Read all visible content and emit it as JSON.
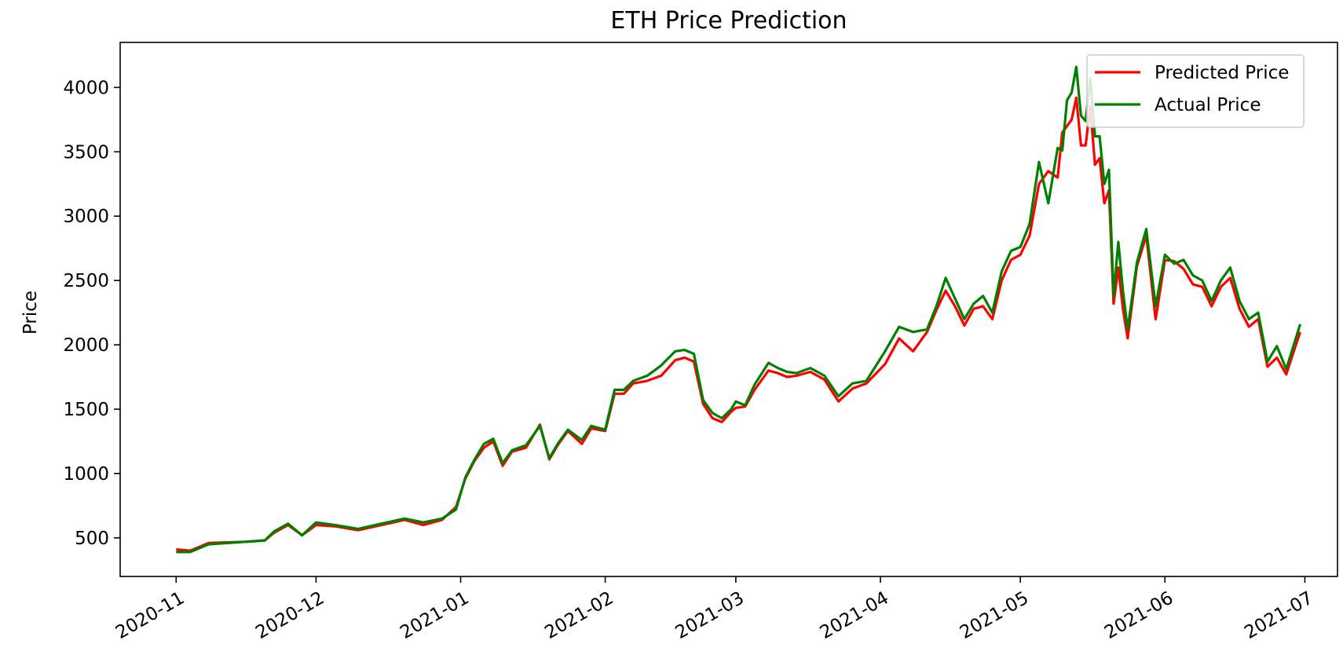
{
  "chart_data": {
    "type": "line",
    "title": "ETH Price Prediction",
    "xlabel": "",
    "ylabel": "Price",
    "x_axis": "date",
    "xlim": [
      "2020-10-20",
      "2021-07-08"
    ],
    "ylim": [
      200,
      4350
    ],
    "x_ticks": [
      "2020-11",
      "2020-12",
      "2021-01",
      "2021-02",
      "2021-03",
      "2021-04",
      "2021-05",
      "2021-06",
      "2021-07"
    ],
    "y_ticks": [
      500,
      1000,
      1500,
      2000,
      2500,
      3000,
      3500,
      4000
    ],
    "grid": false,
    "legend_position": "top-right",
    "dates": [
      "2020-11-01",
      "2020-11-04",
      "2020-11-08",
      "2020-11-12",
      "2020-11-16",
      "2020-11-20",
      "2020-11-22",
      "2020-11-25",
      "2020-11-28",
      "2020-12-01",
      "2020-12-05",
      "2020-12-10",
      "2020-12-15",
      "2020-12-20",
      "2020-12-24",
      "2020-12-28",
      "2020-12-31",
      "2021-01-02",
      "2021-01-04",
      "2021-01-06",
      "2021-01-08",
      "2021-01-10",
      "2021-01-12",
      "2021-01-15",
      "2021-01-18",
      "2021-01-20",
      "2021-01-22",
      "2021-01-24",
      "2021-01-27",
      "2021-01-29",
      "2021-02-01",
      "2021-02-03",
      "2021-02-05",
      "2021-02-07",
      "2021-02-10",
      "2021-02-13",
      "2021-02-16",
      "2021-02-18",
      "2021-02-20",
      "2021-02-22",
      "2021-02-24",
      "2021-02-26",
      "2021-02-28",
      "2021-03-01",
      "2021-03-03",
      "2021-03-05",
      "2021-03-08",
      "2021-03-10",
      "2021-03-12",
      "2021-03-14",
      "2021-03-17",
      "2021-03-20",
      "2021-03-23",
      "2021-03-26",
      "2021-03-29",
      "2021-04-02",
      "2021-04-05",
      "2021-04-08",
      "2021-04-11",
      "2021-04-13",
      "2021-04-15",
      "2021-04-17",
      "2021-04-19",
      "2021-04-21",
      "2021-04-23",
      "2021-04-25",
      "2021-04-27",
      "2021-04-29",
      "2021-05-01",
      "2021-05-03",
      "2021-05-05",
      "2021-05-07",
      "2021-05-09",
      "2021-05-10",
      "2021-05-11",
      "2021-05-12",
      "2021-05-13",
      "2021-05-14",
      "2021-05-15",
      "2021-05-16",
      "2021-05-17",
      "2021-05-18",
      "2021-05-19",
      "2021-05-20",
      "2021-05-21",
      "2021-05-22",
      "2021-05-23",
      "2021-05-24",
      "2021-05-26",
      "2021-05-28",
      "2021-05-30",
      "2021-06-01",
      "2021-06-03",
      "2021-06-05",
      "2021-06-07",
      "2021-06-09",
      "2021-06-11",
      "2021-06-13",
      "2021-06-15",
      "2021-06-17",
      "2021-06-19",
      "2021-06-21",
      "2021-06-23",
      "2021-06-25",
      "2021-06-27",
      "2021-06-30"
    ],
    "series": [
      {
        "name": "Predicted Price",
        "color": "#ff0000",
        "values": [
          410,
          400,
          460,
          465,
          470,
          480,
          540,
          600,
          520,
          600,
          590,
          560,
          600,
          640,
          600,
          640,
          740,
          960,
          1100,
          1200,
          1250,
          1060,
          1170,
          1200,
          1380,
          1110,
          1230,
          1330,
          1230,
          1350,
          1330,
          1620,
          1620,
          1700,
          1720,
          1760,
          1880,
          1900,
          1870,
          1540,
          1430,
          1400,
          1480,
          1510,
          1520,
          1650,
          1800,
          1780,
          1750,
          1760,
          1790,
          1730,
          1560,
          1660,
          1700,
          1850,
          2050,
          1950,
          2100,
          2270,
          2420,
          2300,
          2150,
          2280,
          2300,
          2200,
          2500,
          2660,
          2700,
          2850,
          3250,
          3350,
          3300,
          3650,
          3700,
          3750,
          3920,
          3550,
          3550,
          3850,
          3400,
          3450,
          3100,
          3200,
          2320,
          2600,
          2280,
          2050,
          2610,
          2850,
          2200,
          2660,
          2650,
          2590,
          2470,
          2450,
          2300,
          2450,
          2520,
          2280,
          2140,
          2200,
          1830,
          1900,
          1770,
          2100
        ]
      },
      {
        "name": "Actual Price",
        "color": "#008000",
        "values": [
          390,
          390,
          450,
          460,
          470,
          480,
          550,
          610,
          520,
          620,
          600,
          570,
          610,
          650,
          620,
          650,
          720,
          970,
          1110,
          1230,
          1270,
          1080,
          1180,
          1220,
          1370,
          1120,
          1240,
          1340,
          1260,
          1370,
          1340,
          1650,
          1650,
          1720,
          1760,
          1840,
          1950,
          1960,
          1930,
          1570,
          1470,
          1430,
          1500,
          1560,
          1530,
          1690,
          1860,
          1820,
          1790,
          1780,
          1820,
          1760,
          1600,
          1700,
          1720,
          1950,
          2140,
          2100,
          2120,
          2300,
          2520,
          2360,
          2200,
          2320,
          2380,
          2250,
          2570,
          2730,
          2760,
          2940,
          3420,
          3100,
          3530,
          3510,
          3900,
          3960,
          4160,
          3780,
          3740,
          4070,
          3620,
          3620,
          3250,
          3360,
          2380,
          2800,
          2420,
          2120,
          2640,
          2900,
          2300,
          2700,
          2630,
          2660,
          2540,
          2500,
          2340,
          2500,
          2600,
          2340,
          2200,
          2250,
          1870,
          1990,
          1810,
          2160
        ]
      }
    ]
  }
}
